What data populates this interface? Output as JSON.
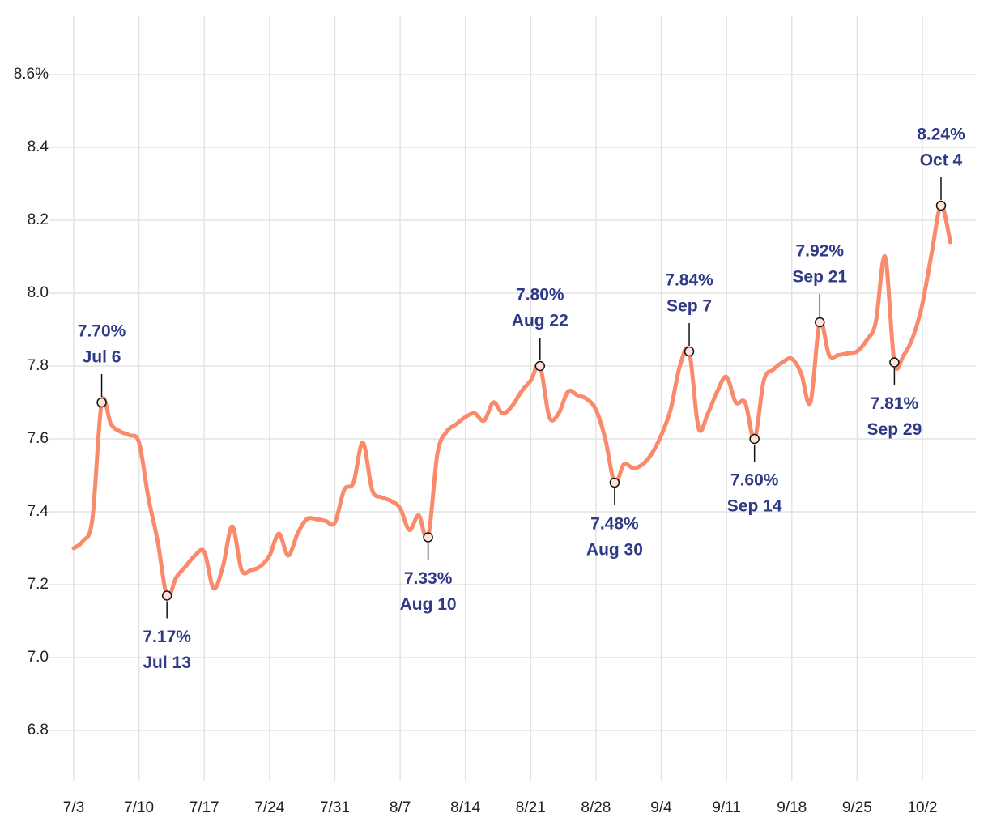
{
  "chart_data": {
    "type": "line",
    "x": [
      "7/3",
      "7/4",
      "7/5",
      "7/6",
      "7/7",
      "7/8",
      "7/9",
      "7/10",
      "7/11",
      "7/12",
      "7/13",
      "7/14",
      "7/15",
      "7/16",
      "7/17",
      "7/18",
      "7/19",
      "7/20",
      "7/21",
      "7/22",
      "7/23",
      "7/24",
      "7/25",
      "7/26",
      "7/27",
      "7/28",
      "7/29",
      "7/30",
      "7/31",
      "8/1",
      "8/2",
      "8/3",
      "8/4",
      "8/5",
      "8/6",
      "8/7",
      "8/8",
      "8/9",
      "8/10",
      "8/11",
      "8/12",
      "8/13",
      "8/14",
      "8/15",
      "8/16",
      "8/17",
      "8/18",
      "8/19",
      "8/20",
      "8/21",
      "8/22",
      "8/23",
      "8/24",
      "8/25",
      "8/26",
      "8/27",
      "8/28",
      "8/29",
      "8/30",
      "8/31",
      "9/1",
      "9/2",
      "9/3",
      "9/4",
      "9/5",
      "9/6",
      "9/7",
      "9/8",
      "9/9",
      "9/10",
      "9/11",
      "9/12",
      "9/13",
      "9/14",
      "9/15",
      "9/16",
      "9/17",
      "9/18",
      "9/19",
      "9/20",
      "9/21",
      "9/22",
      "9/23",
      "9/24",
      "9/25",
      "9/26",
      "9/27",
      "9/28",
      "9/29",
      "9/30",
      "10/1",
      "10/2",
      "10/3",
      "10/4",
      "10/5"
    ],
    "series": [
      {
        "color": "#f98b6c",
        "values": [
          7.3,
          7.32,
          7.38,
          7.7,
          7.64,
          7.62,
          7.61,
          7.59,
          7.44,
          7.32,
          7.17,
          7.22,
          7.25,
          7.28,
          7.29,
          7.19,
          7.25,
          7.36,
          7.24,
          7.24,
          7.25,
          7.28,
          7.34,
          7.28,
          7.34,
          7.38,
          7.38,
          7.375,
          7.37,
          7.46,
          7.48,
          7.59,
          7.46,
          7.44,
          7.43,
          7.41,
          7.35,
          7.39,
          7.33,
          7.56,
          7.62,
          7.64,
          7.66,
          7.67,
          7.65,
          7.7,
          7.67,
          7.69,
          7.73,
          7.76,
          7.8,
          7.66,
          7.67,
          7.73,
          7.72,
          7.71,
          7.68,
          7.6,
          7.48,
          7.53,
          7.52,
          7.53,
          7.56,
          7.61,
          7.68,
          7.8,
          7.84,
          7.63,
          7.67,
          7.73,
          7.77,
          7.7,
          7.7,
          7.6,
          7.76,
          7.79,
          7.81,
          7.82,
          7.78,
          7.7,
          7.92,
          7.83,
          7.83,
          7.835,
          7.84,
          7.87,
          7.92,
          8.1,
          7.81,
          7.83,
          7.88,
          7.97,
          8.11,
          8.24,
          8.14
        ]
      }
    ],
    "xticks": [
      "7/3",
      "7/10",
      "7/17",
      "7/24",
      "7/31",
      "8/7",
      "8/14",
      "8/21",
      "8/28",
      "9/4",
      "9/11",
      "9/18",
      "9/25",
      "10/2"
    ],
    "ylim": [
      6.66,
      8.76
    ],
    "yticks": [
      6.8,
      {
        "value": 7,
        "label": "7.0"
      },
      7.2,
      7.4,
      7.6,
      7.8,
      {
        "value": 8,
        "label": "8.0"
      },
      8.2,
      8.4,
      {
        "value": 8.6,
        "label": "8.6%"
      }
    ],
    "grid": true,
    "annotation_color": "#2e3a87",
    "annotations": [
      {
        "x": "7/6",
        "label": "7.70%",
        "date": "Jul 6",
        "side": "above"
      },
      {
        "x": "7/13",
        "label": "7.17%",
        "date": "Jul 13",
        "side": "below"
      },
      {
        "x": "8/10",
        "label": "7.33%",
        "date": "Aug 10",
        "side": "below"
      },
      {
        "x": "8/22",
        "label": "7.80%",
        "date": "Aug 22",
        "side": "above"
      },
      {
        "x": "8/30",
        "label": "7.48%",
        "date": "Aug 30",
        "side": "below"
      },
      {
        "x": "9/7",
        "label": "7.84%",
        "date": "Sep 7",
        "side": "above"
      },
      {
        "x": "9/14",
        "label": "7.60%",
        "date": "Sep 14",
        "side": "below"
      },
      {
        "x": "9/21",
        "label": "7.92%",
        "date": "Sep 21",
        "side": "above"
      },
      {
        "x": "9/29",
        "label": "7.81%",
        "date": "Sep 29",
        "side": "below"
      },
      {
        "x": "10/4",
        "label": "8.24%",
        "date": "Oct 4",
        "side": "above"
      }
    ]
  }
}
